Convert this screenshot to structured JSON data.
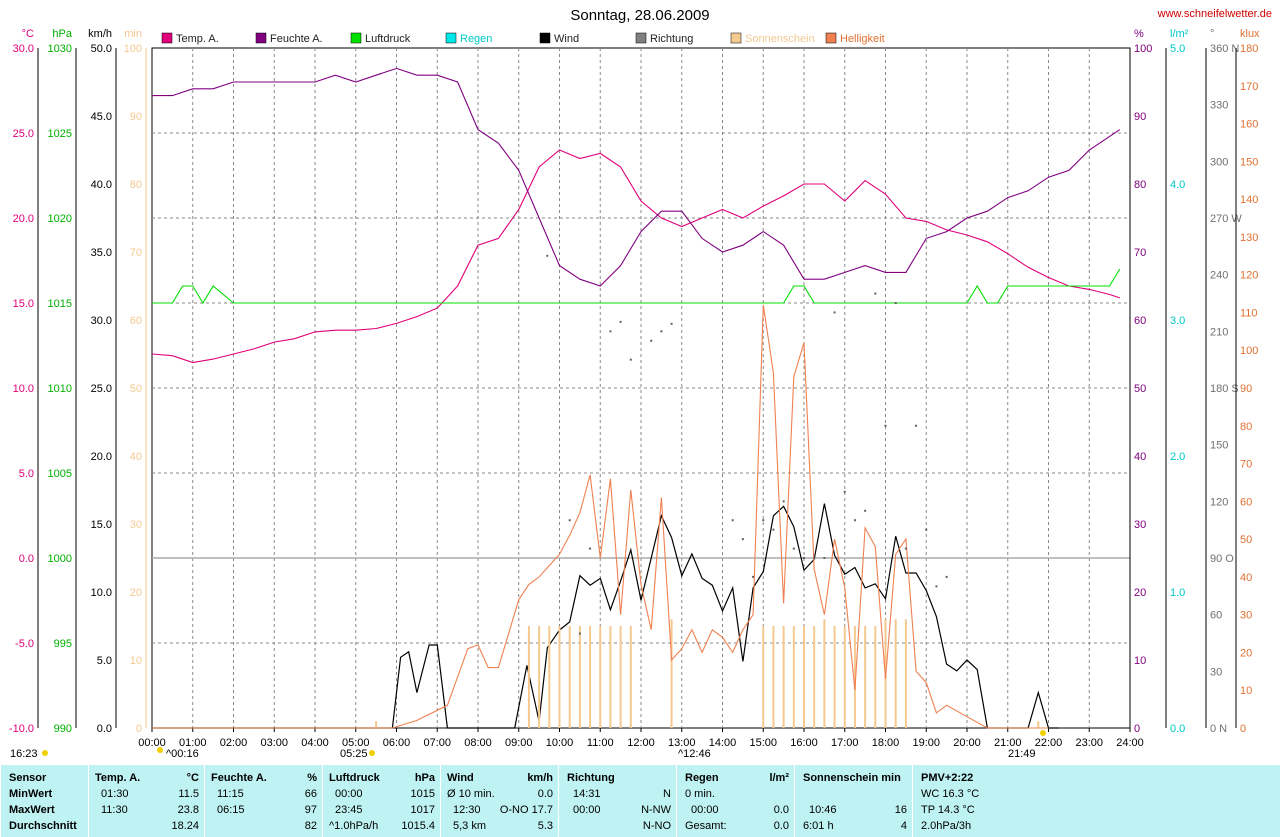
{
  "chart_data": {
    "type": "line",
    "title": "Sonntag, 28.06.2009",
    "source": "www.schneifelwetter.de",
    "x_ticks": [
      "00:00",
      "01:00",
      "02:00",
      "03:00",
      "04:00",
      "05:00",
      "06:00",
      "07:00",
      "08:00",
      "09:00",
      "10:00",
      "11:00",
      "12:00",
      "13:00",
      "14:00",
      "15:00",
      "16:00",
      "17:00",
      "18:00",
      "19:00",
      "20:00",
      "21:00",
      "22:00",
      "23:00",
      "24:00"
    ],
    "x_range_hours": [
      0,
      24
    ],
    "axes_left": [
      {
        "unit": "°C",
        "color": "#e0007a",
        "min": -10,
        "max": 30,
        "ticks": [
          "30.0",
          "25.0",
          "20.0",
          "15.0",
          "10.0",
          "5.0",
          "0.0",
          "-5.0",
          "-10.0"
        ]
      },
      {
        "unit": "hPa",
        "color": "#00b000",
        "min": 990,
        "max": 1030,
        "ticks": [
          "1030",
          "1025",
          "1020",
          "1015",
          "1010",
          "1005",
          "1000",
          "995",
          "990"
        ]
      },
      {
        "unit": "km/h",
        "color": "#000000",
        "min": 0,
        "max": 50,
        "ticks": [
          "50.0",
          "45.0",
          "40.0",
          "35.0",
          "30.0",
          "25.0",
          "20.0",
          "15.0",
          "10.0",
          "5.0",
          "0.0"
        ]
      },
      {
        "unit": "min",
        "color": "#f5c890",
        "min": 0,
        "max": 100,
        "ticks": [
          "100",
          "90",
          "80",
          "70",
          "60",
          "50",
          "40",
          "30",
          "20",
          "10",
          "0"
        ]
      }
    ],
    "axes_right": [
      {
        "unit": "%",
        "color": "#800080",
        "min": 0,
        "max": 100,
        "ticks": [
          "100",
          "90",
          "80",
          "70",
          "60",
          "50",
          "40",
          "30",
          "20",
          "10",
          "0"
        ]
      },
      {
        "unit": "l/m²",
        "color": "#00c8c8",
        "min": 0,
        "max": 5,
        "ticks": [
          "5.0",
          "4.0",
          "3.0",
          "2.0",
          "1.0",
          "0.0"
        ]
      },
      {
        "unit": "°",
        "color": "#707070",
        "min": 0,
        "max": 360,
        "ticks": [
          "360 N",
          "330",
          "300",
          "270 W",
          "240",
          "210",
          "180 S",
          "150",
          "120",
          "90 O",
          "60",
          "30",
          "0 N"
        ]
      },
      {
        "unit": "klux",
        "color": "#e07030",
        "min": 0,
        "max": 180,
        "ticks": [
          "180",
          "170",
          "160",
          "150",
          "140",
          "130",
          "120",
          "110",
          "100",
          "90",
          "80",
          "70",
          "60",
          "50",
          "40",
          "30",
          "20",
          "10",
          "0"
        ]
      }
    ],
    "legend": [
      {
        "name": "Temp. A.",
        "color": "#e0007a"
      },
      {
        "name": "Feuchte A.",
        "color": "#800080"
      },
      {
        "name": "Luftdruck",
        "color": "#00e000"
      },
      {
        "name": "Regen",
        "color": "#00e8e8"
      },
      {
        "name": "Wind",
        "color": "#000000"
      },
      {
        "name": "Richtung",
        "color": "#808080"
      },
      {
        "name": "Sonnenschein",
        "color": "#f5c890"
      },
      {
        "name": "Helligkeit",
        "color": "#f08050"
      }
    ],
    "grid": true,
    "series": [
      {
        "name": "Temp. A.",
        "color": "#e0007a",
        "axis": "°C",
        "x": [
          0,
          0.5,
          1,
          1.5,
          2,
          2.5,
          3,
          3.5,
          4,
          4.5,
          5,
          5.5,
          6,
          6.5,
          7,
          7.5,
          8,
          8.5,
          9,
          9.5,
          10,
          10.5,
          11,
          11.5,
          12,
          12.5,
          13,
          13.5,
          14,
          14.5,
          15,
          15.5,
          16,
          16.5,
          17,
          17.5,
          18,
          18.5,
          19,
          19.5,
          20,
          20.5,
          21,
          21.5,
          22,
          22.5,
          23,
          23.5,
          23.75
        ],
        "y": [
          12.0,
          11.9,
          11.5,
          11.7,
          12.0,
          12.3,
          12.7,
          12.9,
          13.3,
          13.4,
          13.4,
          13.5,
          13.8,
          14.2,
          14.7,
          16,
          18.4,
          18.8,
          20.5,
          23.0,
          24.0,
          23.5,
          23.8,
          23.0,
          21.0,
          20.0,
          19.5,
          20.0,
          20.5,
          20.0,
          20.7,
          21.3,
          22.0,
          22.0,
          21.0,
          22.2,
          21.4,
          20.0,
          19.8,
          19.3,
          19.0,
          18.6,
          17.9,
          17.1,
          16.5,
          16.0,
          15.8,
          15.5,
          15.3
        ]
      },
      {
        "name": "Feuchte A.",
        "color": "#800080",
        "axis": "%",
        "x": [
          0,
          0.5,
          1,
          1.5,
          2,
          2.5,
          3,
          3.5,
          4,
          4.5,
          5,
          5.5,
          6,
          6.5,
          7,
          7.5,
          8,
          8.5,
          9,
          9.5,
          10,
          10.5,
          11,
          11.5,
          12,
          12.5,
          13,
          13.5,
          14,
          14.5,
          15,
          15.5,
          16,
          16.5,
          17,
          17.5,
          18,
          18.5,
          19,
          19.5,
          20,
          20.5,
          21,
          21.5,
          22,
          22.5,
          23,
          23.5,
          23.75
        ],
        "y": [
          93,
          93,
          94,
          94,
          95,
          95,
          95,
          95,
          95,
          96,
          95,
          96,
          97,
          96,
          96,
          95,
          88,
          86,
          82,
          75,
          68,
          66,
          65,
          68,
          73,
          76,
          76,
          72,
          70,
          71,
          73,
          71,
          66,
          66,
          67,
          68,
          67,
          67,
          72,
          73,
          75,
          76,
          78,
          79,
          81,
          82,
          85,
          87,
          88
        ]
      },
      {
        "name": "Luftdruck",
        "color": "#00e000",
        "axis": "hPa",
        "x": [
          0,
          0.5,
          0.75,
          1,
          1.25,
          1.5,
          2,
          4,
          6,
          8,
          10,
          12,
          14,
          15.5,
          15.75,
          16,
          16.25,
          17,
          19,
          20,
          20.25,
          20.5,
          20.75,
          21,
          21.25,
          22,
          23,
          23.5,
          23.75
        ],
        "y": [
          1015,
          1015,
          1016,
          1016,
          1015,
          1016,
          1015,
          1015,
          1015,
          1015,
          1015,
          1015,
          1015,
          1015,
          1016,
          1016,
          1015,
          1015,
          1015,
          1015,
          1016,
          1015,
          1015,
          1016,
          1016,
          1016,
          1016,
          1016,
          1017
        ]
      },
      {
        "name": "Wind",
        "color": "#000000",
        "axis": "km/h",
        "x": [
          0,
          5.9,
          6.1,
          6.3,
          6.5,
          6.8,
          7,
          7.25,
          8.9,
          9.2,
          9.5,
          9.7,
          10,
          10.25,
          10.5,
          10.75,
          11,
          11.25,
          11.5,
          11.75,
          12,
          12.25,
          12.5,
          12.75,
          13,
          13.25,
          13.5,
          13.75,
          14,
          14.25,
          14.5,
          14.75,
          15,
          15.25,
          15.5,
          15.75,
          16,
          16.25,
          16.5,
          16.75,
          17,
          17.25,
          17.5,
          17.75,
          18,
          18.25,
          18.5,
          18.75,
          19,
          19.25,
          19.5,
          19.75,
          20,
          20.25,
          20.5,
          21,
          21.5,
          21.75,
          22,
          22.25
        ],
        "y": [
          0,
          0,
          5.2,
          5.6,
          2.6,
          6.1,
          6.1,
          0,
          0,
          4.6,
          0.5,
          5.9,
          7.2,
          7.8,
          11.2,
          10.5,
          11.0,
          8.7,
          10.8,
          13.1,
          9.4,
          12.5,
          15.6,
          14.0,
          11.2,
          12.8,
          11.0,
          10.5,
          8.6,
          10.3,
          4.9,
          10.3,
          11.5,
          15.6,
          16.3,
          14.8,
          11.6,
          12.4,
          16.5,
          12.7,
          11.3,
          11.8,
          10.3,
          10.6,
          9.5,
          14.1,
          11.4,
          11.4,
          10.1,
          8.2,
          4.7,
          4.2,
          5.0,
          4.3,
          0,
          0,
          0,
          2.6,
          0,
          0
        ]
      },
      {
        "name": "Sonnenschein",
        "color": "#f5c890",
        "axis": "min",
        "type": "bar",
        "x": [
          5.5,
          9.25,
          9.5,
          9.75,
          10,
          10.25,
          10.5,
          10.75,
          11,
          11.25,
          11.5,
          11.75,
          12.75,
          15,
          15.25,
          15.5,
          15.75,
          16,
          16.25,
          16.5,
          16.75,
          17,
          17.25,
          17.5,
          17.75,
          18,
          18.25,
          18.5,
          21.75
        ],
        "y": [
          1,
          15,
          15,
          15,
          15,
          15,
          15,
          15,
          15,
          15,
          15,
          15,
          16,
          15,
          15,
          15,
          15,
          15,
          15,
          16,
          15,
          15,
          15,
          15,
          15,
          16,
          16,
          16,
          1
        ]
      },
      {
        "name": "Helligkeit",
        "color": "#f08050",
        "axis": "klux",
        "x": [
          0,
          5.9,
          6.5,
          7.25,
          7.75,
          8,
          8.25,
          8.5,
          9,
          9.25,
          9.5,
          9.75,
          10,
          10.25,
          10.5,
          10.75,
          11,
          11.25,
          11.5,
          11.75,
          12,
          12.25,
          12.5,
          12.75,
          13,
          13.25,
          13.5,
          13.75,
          14,
          14.25,
          14.5,
          14.75,
          15,
          15.25,
          15.5,
          15.75,
          16,
          16.25,
          16.5,
          16.75,
          17,
          17.25,
          17.5,
          17.75,
          18,
          18.25,
          18.5,
          18.75,
          19,
          19.25,
          19.5,
          20,
          20.5,
          21,
          21.5,
          21.75,
          22
        ],
        "y": [
          0,
          0,
          2,
          6,
          21,
          22,
          16,
          16,
          34,
          38,
          40,
          43,
          46,
          51,
          57,
          67,
          45,
          66,
          30,
          63,
          38,
          26,
          61,
          18,
          21,
          26,
          20,
          26,
          24,
          20,
          26,
          30,
          112,
          94,
          33,
          93,
          102,
          42,
          30,
          50,
          37,
          10,
          53,
          48,
          13,
          46,
          50,
          15,
          12,
          4,
          6,
          3,
          0,
          0,
          0,
          0,
          0
        ]
      }
    ],
    "direction_points": {
      "axis": "°",
      "x": [
        9.7,
        10.25,
        10.5,
        10.75,
        11.25,
        11.5,
        11.75,
        12.25,
        12.5,
        12.75,
        14.25,
        14.5,
        14.75,
        15,
        15.25,
        15.5,
        15.75,
        16,
        16.25,
        16.5,
        16.75,
        17,
        17.25,
        17.5,
        17.75,
        18,
        18.25,
        18.5,
        18.75,
        19,
        19.25,
        19.5
      ],
      "y": [
        250,
        110,
        50,
        95,
        210,
        215,
        195,
        205,
        210,
        214,
        110,
        100,
        80,
        110,
        105,
        120,
        95,
        90,
        90,
        90,
        220,
        125,
        110,
        115,
        230,
        160,
        225,
        95,
        160,
        105,
        75,
        80
      ]
    },
    "annotations": {
      "sunrise_marker": "^00:16",
      "sunrise_time": "05:25",
      "solar_noon": "^12:46",
      "sunset_time": "21:49",
      "clock": "16:23"
    }
  },
  "summary": {
    "sensor_header": "Sensor",
    "row_labels": [
      "MinWert",
      "MaxWert",
      "Durchschnitt"
    ],
    "temp": {
      "header": "Temp. A.",
      "unit": "°C",
      "min_time": "01:30",
      "min": "11.5",
      "max_time": "11:30",
      "max": "23.8",
      "avg": "18.24"
    },
    "hum": {
      "header": "Feuchte A.",
      "unit": "%",
      "min_time": "11:15",
      "min": "66",
      "max_time": "06:15",
      "max": "97",
      "avg": "82"
    },
    "press": {
      "header": "Luftdruck",
      "unit": "hPa",
      "min_time": "00:00",
      "min": "1015",
      "max_time": "23:45",
      "max": "1017",
      "avg_label": "^1.0hPa/h",
      "avg": "1015.4"
    },
    "wind": {
      "header": "Wind",
      "unit": "km/h",
      "min_label": "Ø 10 min.",
      "min": "0.0",
      "max_time": "12:30",
      "max": "O-NO 17.7",
      "avg_label": "5,3 km",
      "avg": "5.3"
    },
    "dir": {
      "header": "Richtung",
      "min_time": "14:31",
      "min": "N",
      "max_time": "00:00",
      "max": "N-NW",
      "avg": "N-NO"
    },
    "rain": {
      "header": "Regen",
      "unit": "l/m²",
      "min_label": "0 min.",
      "max_time": "00:00",
      "max": "0.0",
      "avg_label": "Gesamt:",
      "avg": "0.0"
    },
    "sun": {
      "header": "Sonnenschein min",
      "max_time": "10:46",
      "max": "16",
      "avg_label": "6:01 h",
      "avg": "4"
    },
    "pmv": {
      "header": "PMV+2:22",
      "line1": "WC 16.3 °C",
      "line2": "TP 14.3 °C",
      "line3": "2.0hPa/3h"
    }
  }
}
